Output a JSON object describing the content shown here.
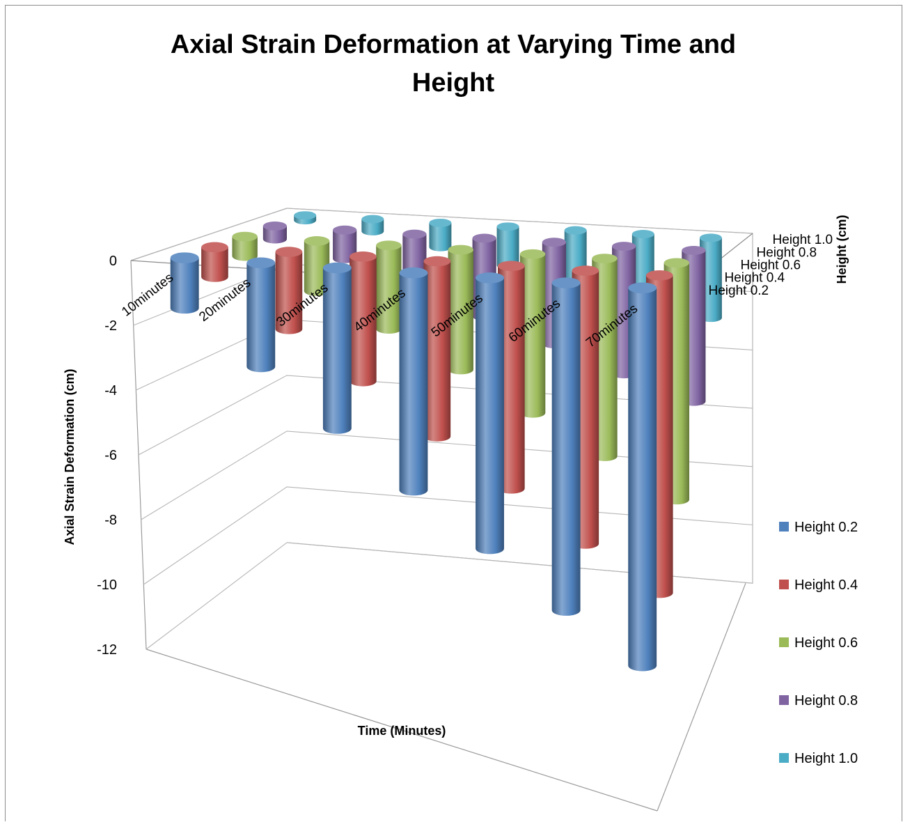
{
  "chart_data": {
    "type": "bar",
    "variant": "3d-cylinder",
    "title": "Axial Strain Deformation at Varying Time and Height",
    "title_lines": [
      "Axial Strain Deformation at Varying Time and",
      "Height"
    ],
    "xlabel": "Time (Minutes)",
    "ylabel": "Axial Strain Deformation (cm)",
    "zlabel": "Height (cm)",
    "ylim": [
      -12,
      0
    ],
    "yticks": [
      "0",
      "-2",
      "-4",
      "-6",
      "-8",
      "-10",
      "-12"
    ],
    "grid": true,
    "legend_position": "right",
    "categories": [
      "10minutes",
      "20minutes",
      "30minutes",
      "40minutes",
      "50minutes",
      "60minutes",
      "70minutes"
    ],
    "series": [
      {
        "name": "Height 0.2",
        "color": "#4f81bd",
        "values": [
          -1.6,
          -3.3,
          -5.1,
          -6.9,
          -8.6,
          -10.4,
          -12.0
        ]
      },
      {
        "name": "Height 0.4",
        "color": "#c0504d",
        "values": [
          -1.0,
          -2.6,
          -4.2,
          -5.9,
          -7.5,
          -9.2,
          -10.7
        ]
      },
      {
        "name": "Height 0.6",
        "color": "#9bbb59",
        "values": [
          -0.7,
          -1.8,
          -3.0,
          -4.3,
          -5.7,
          -7.1,
          -8.5
        ]
      },
      {
        "name": "Height 0.8",
        "color": "#8064a2",
        "values": [
          -0.5,
          -1.1,
          -2.0,
          -3.0,
          -3.9,
          -4.9,
          -5.8
        ]
      },
      {
        "name": "Height 1.0",
        "color": "#4bacc6",
        "values": [
          -0.2,
          -0.5,
          -1.0,
          -1.6,
          -2.2,
          -2.8,
          -3.3
        ]
      }
    ]
  }
}
